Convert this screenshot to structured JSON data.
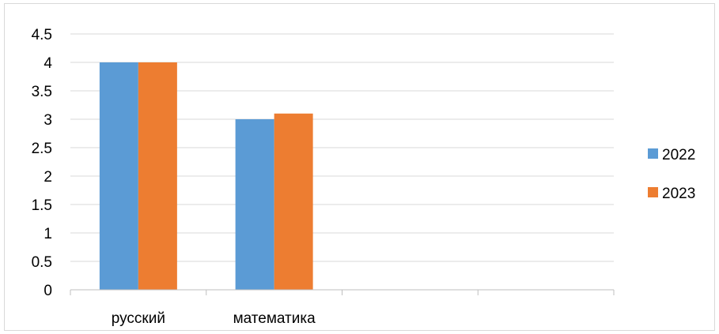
{
  "chart_data": {
    "type": "bar",
    "categories": [
      "русский",
      "математика",
      "",
      ""
    ],
    "series": [
      {
        "name": "2022",
        "color": "#5B9BD5",
        "values": [
          4,
          3,
          null,
          null
        ]
      },
      {
        "name": "2023",
        "color": "#ED7D31",
        "values": [
          4,
          3.1,
          null,
          null
        ]
      }
    ],
    "ylim": [
      0,
      4.5
    ],
    "yticks": [
      "0",
      "0.5",
      "1",
      "1.5",
      "2",
      "2.5",
      "3",
      "3.5",
      "4",
      "4.5"
    ],
    "grid": true,
    "legend": "right",
    "title": "",
    "xlabel": "",
    "ylabel": ""
  }
}
